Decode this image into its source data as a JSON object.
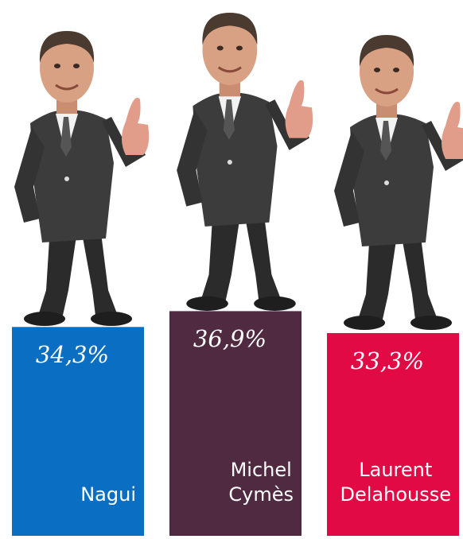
{
  "chart_data": {
    "type": "bar",
    "categories": [
      "Nagui",
      "Michel Cymès",
      "Laurent Delahousse"
    ],
    "values": [
      34.3,
      36.9,
      33.3
    ],
    "value_labels": [
      "34,3%",
      "36,9%",
      "33,3%"
    ],
    "colors": [
      "#0a6fc2",
      "#4f2a40",
      "#e10a45"
    ],
    "ylim": [
      0,
      88
    ]
  }
}
